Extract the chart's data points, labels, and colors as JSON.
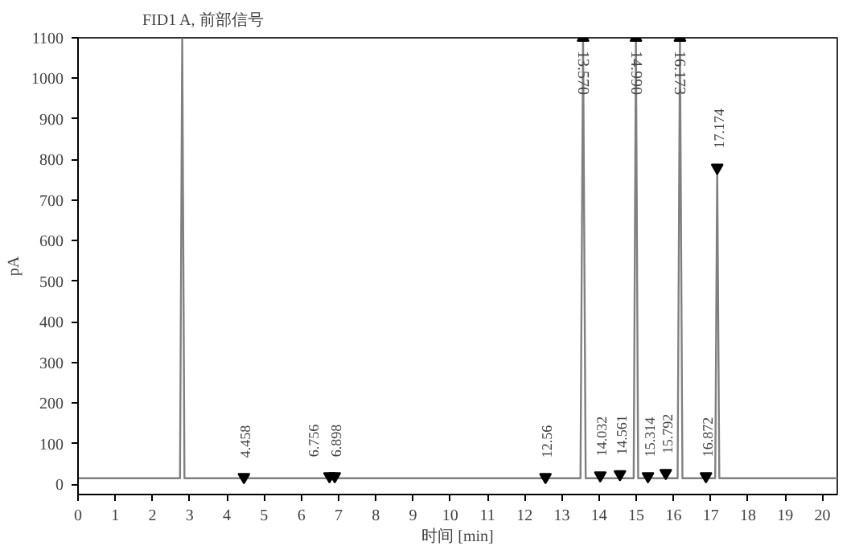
{
  "chart_data": {
    "type": "line",
    "title": "FID1 A, 前部信号",
    "xlabel": "时间 [min]",
    "ylabel": "pA",
    "x": [
      0,
      2.74,
      2.8,
      2.86,
      4.4,
      4.458,
      4.52,
      6.7,
      6.756,
      6.83,
      6.898,
      6.96,
      12.5,
      12.56,
      12.62,
      13.5,
      13.57,
      13.64,
      13.98,
      14.032,
      14.09,
      14.5,
      14.561,
      14.62,
      14.93,
      14.99,
      15.05,
      15.26,
      15.314,
      15.37,
      15.73,
      15.792,
      15.85,
      16.11,
      16.173,
      16.24,
      16.82,
      16.872,
      16.93,
      17.12,
      17.174,
      17.23,
      20.4
    ],
    "series": [
      {
        "color": "#808080",
        "values": [
          15,
          15,
          1100,
          15,
          15,
          18,
          15,
          15,
          20,
          15,
          20,
          15,
          15,
          18,
          15,
          15,
          1100,
          15,
          15,
          22,
          15,
          15,
          25,
          15,
          15,
          1100,
          15,
          15,
          20,
          15,
          15,
          28,
          15,
          15,
          1100,
          15,
          15,
          20,
          15,
          15,
          780,
          15,
          15
        ]
      }
    ],
    "xlim": [
      0,
      20.4
    ],
    "ylim": [
      -25,
      1100
    ],
    "xticks": [
      0,
      1,
      2,
      3,
      4,
      5,
      6,
      7,
      8,
      9,
      10,
      11,
      12,
      13,
      14,
      15,
      16,
      17,
      18,
      19,
      20
    ],
    "yticks": [
      0,
      100,
      200,
      300,
      400,
      500,
      600,
      700,
      800,
      900,
      1000,
      1100
    ],
    "grid": false,
    "marker": "none",
    "line_style": "solid",
    "annotations": [
      {
        "text": "4.458",
        "x": 4.458,
        "y": 18
      },
      {
        "text": "6.756",
        "x": 6.756,
        "y": 20
      },
      {
        "text": "6.898",
        "x": 6.898,
        "y": 20
      },
      {
        "text": "12.56",
        "x": 12.56,
        "y": 18
      },
      {
        "text": "13.570",
        "x": 13.57,
        "y": 1100
      },
      {
        "text": "14.032",
        "x": 14.032,
        "y": 22
      },
      {
        "text": "14.561",
        "x": 14.561,
        "y": 25
      },
      {
        "text": "14.990",
        "x": 14.99,
        "y": 1100
      },
      {
        "text": "15.314",
        "x": 15.314,
        "y": 20
      },
      {
        "text": "15.792",
        "x": 15.792,
        "y": 28
      },
      {
        "text": "16.173",
        "x": 16.173,
        "y": 1100
      },
      {
        "text": "16.872",
        "x": 16.872,
        "y": 20
      },
      {
        "text": "17.174",
        "x": 17.174,
        "y": 780
      }
    ]
  }
}
